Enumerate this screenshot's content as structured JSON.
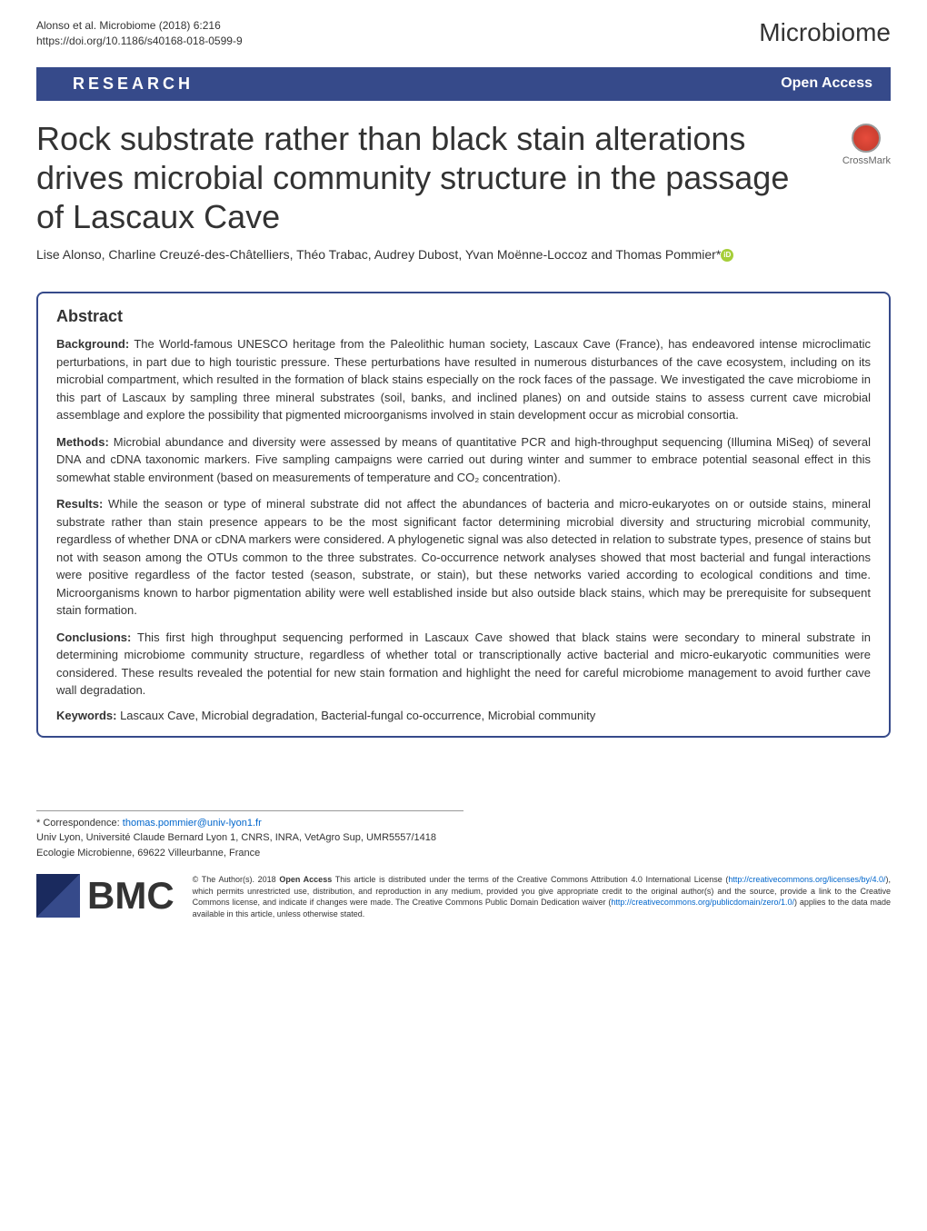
{
  "header": {
    "citation_line1": "Alonso et al. Microbiome           (2018) 6:216",
    "citation_line2": "https://doi.org/10.1186/s40168-018-0599-9",
    "journal_name": "Microbiome"
  },
  "research_bar": {
    "label": "RESEARCH",
    "open_access": "Open Access"
  },
  "crossmark": {
    "label": "CrossMark"
  },
  "article": {
    "title": "Rock substrate rather than black stain alterations drives microbial community structure in the passage of Lascaux Cave",
    "authors": "Lise Alonso, Charline Creuzé-des-Châtelliers, Théo Trabac, Audrey Dubost, Yvan Moënne-Loccoz and Thomas Pommier*"
  },
  "abstract": {
    "title": "Abstract",
    "background_label": "Background:",
    "background_text": " The World-famous UNESCO heritage from the Paleolithic human society, Lascaux Cave (France), has endeavored intense microclimatic perturbations, in part due to high touristic pressure. These perturbations have resulted in numerous disturbances of the cave ecosystem, including on its microbial compartment, which resulted in the formation of black stains especially on the rock faces of the passage. We investigated the cave microbiome in this part of Lascaux by sampling three mineral substrates (soil, banks, and inclined planes) on and outside stains to assess current cave microbial assemblage and explore the possibility that pigmented microorganisms involved in stain development occur as microbial consortia.",
    "methods_label": "Methods:",
    "methods_text": " Microbial abundance and diversity were assessed by means of quantitative PCR and high-throughput sequencing (Illumina MiSeq) of several DNA and cDNA taxonomic markers. Five sampling campaigns were carried out during winter and summer to embrace potential seasonal effect in this somewhat stable environment (based on measurements of temperature and CO₂ concentration).",
    "results_label": "Results:",
    "results_text": " While the season or type of mineral substrate did not affect the abundances of bacteria and micro-eukaryotes on or outside stains, mineral substrate rather than stain presence appears to be the most significant factor determining microbial diversity and structuring microbial community, regardless of whether DNA or cDNA markers were considered. A phylogenetic signal was also detected in relation to substrate types, presence of stains but not with season among the OTUs common to the three substrates. Co-occurrence network analyses showed that most bacterial and fungal interactions were positive regardless of the factor tested (season, substrate, or stain), but these networks varied according to ecological conditions and time. Microorganisms known to harbor pigmentation ability were well established inside but also outside black stains, which may be prerequisite for subsequent stain formation.",
    "conclusions_label": "Conclusions:",
    "conclusions_text": " This first high throughput sequencing performed in Lascaux Cave showed that black stains were secondary to mineral substrate in determining microbiome community structure, regardless of whether total or transcriptionally active bacterial and micro-eukaryotic communities were considered. These results revealed the potential for new stain formation and highlight the need for careful microbiome management to avoid further cave wall degradation.",
    "keywords_label": "Keywords:",
    "keywords_text": " Lascaux Cave, Microbial degradation, Bacterial-fungal co-occurrence, Microbial community"
  },
  "footer": {
    "correspondence_prefix": "* Correspondence: ",
    "correspondence_email": "thomas.pommier@univ-lyon1.fr",
    "affiliation": "Univ Lyon, Université Claude Bernard Lyon 1, CNRS, INRA, VetAgro Sup, UMR5557/1418 Ecologie Microbienne, 69622 Villeurbanne, France",
    "bmc_label": "BMC",
    "license_prefix": "© The Author(s). 2018 ",
    "license_bold": "Open Access",
    "license_text1": " This article is distributed under the terms of the Creative Commons Attribution 4.0 International License (",
    "license_link1": "http://creativecommons.org/licenses/by/4.0/",
    "license_text2": "), which permits unrestricted use, distribution, and reproduction in any medium, provided you give appropriate credit to the original author(s) and the source, provide a link to the Creative Commons license, and indicate if changes were made. The Creative Commons Public Domain Dedication waiver (",
    "license_link2": "http://creativecommons.org/publicdomain/zero/1.0/",
    "license_text3": ") applies to the data made available in this article, unless otherwise stated."
  }
}
